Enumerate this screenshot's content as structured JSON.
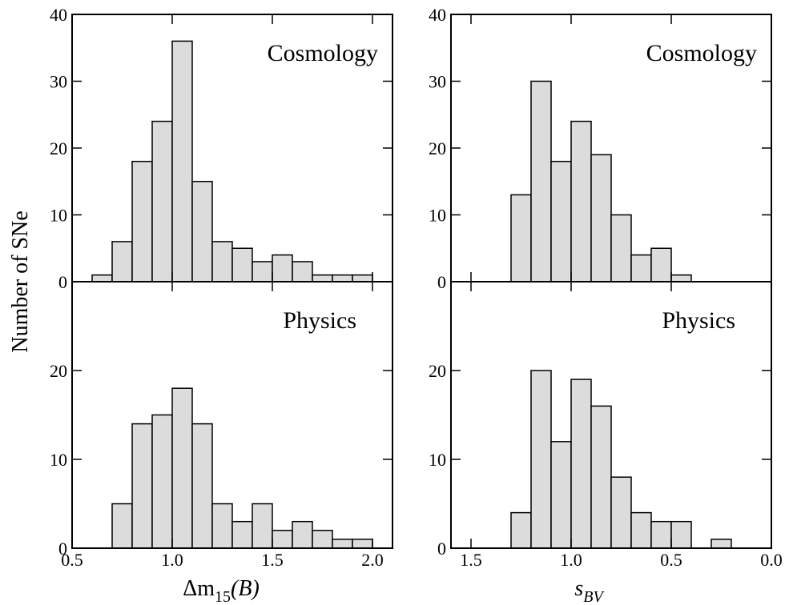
{
  "chart_data": [
    {
      "type": "histogram",
      "annotation": "Cosmology",
      "ylabel": "Number of SNe",
      "color": "#dcdcdc",
      "bins": [
        0.6,
        0.7,
        0.8,
        0.9,
        1.0,
        1.1,
        1.2,
        1.3,
        1.4,
        1.5,
        1.6,
        1.7,
        1.8,
        1.9,
        2.0
      ],
      "values": [
        1,
        6,
        18,
        24,
        36,
        15,
        6,
        5,
        3,
        4,
        3,
        1,
        1,
        1
      ],
      "xlim": [
        0.5,
        2.1
      ],
      "ylim": [
        0,
        40
      ],
      "yticks": [
        0,
        10,
        20,
        30,
        40
      ]
    },
    {
      "type": "histogram",
      "annotation": "Physics",
      "color": "#dcdcdc",
      "xlabel": {
        "main": "Δm",
        "sub": "15",
        "tail": "(B)"
      },
      "bins": [
        0.7,
        0.8,
        0.9,
        1.0,
        1.1,
        1.2,
        1.3,
        1.4,
        1.5,
        1.6,
        1.7,
        1.8,
        1.9,
        2.0
      ],
      "values": [
        5,
        14,
        15,
        18,
        14,
        5,
        3,
        5,
        2,
        3,
        2,
        1,
        1
      ],
      "xlim": [
        0.5,
        2.1
      ],
      "ylim": [
        0,
        30
      ],
      "yticks": [
        0,
        10,
        20
      ],
      "xticks": [
        0.5,
        {
          "value": 1,
          "label": "1.0"
        },
        1.5,
        {
          "value": 2,
          "label": "2.0"
        }
      ]
    },
    {
      "type": "histogram",
      "annotation": "Cosmology",
      "color": "#dcdcdc",
      "bins": [
        1.3,
        1.2,
        1.1,
        1.0,
        0.9,
        0.8,
        0.7,
        0.6,
        0.5,
        0.4
      ],
      "values": [
        13,
        30,
        18,
        24,
        19,
        10,
        4,
        5,
        1
      ],
      "xlim": [
        1.6,
        0
      ],
      "ylim": [
        0,
        40
      ],
      "yticks": [
        0,
        10,
        20,
        30,
        40
      ]
    },
    {
      "type": "histogram",
      "annotation": "Physics",
      "color": "#dcdcdc",
      "xlabel": {
        "main": "s",
        "sub": "BV"
      },
      "bins": [
        1.3,
        1.2,
        1.1,
        1.0,
        0.9,
        0.8,
        0.7,
        0.6,
        0.5,
        0.4,
        0.3,
        0.2
      ],
      "values": [
        4,
        20,
        12,
        19,
        16,
        8,
        4,
        3,
        3,
        0,
        1
      ],
      "xlim": [
        1.6,
        0
      ],
      "ylim": [
        0,
        30
      ],
      "yticks": [
        0,
        10,
        20
      ],
      "xticks": [
        1.5,
        {
          "value": 1,
          "label": "1.0"
        },
        0.5,
        {
          "value": 0,
          "label": "0.0"
        }
      ]
    }
  ]
}
